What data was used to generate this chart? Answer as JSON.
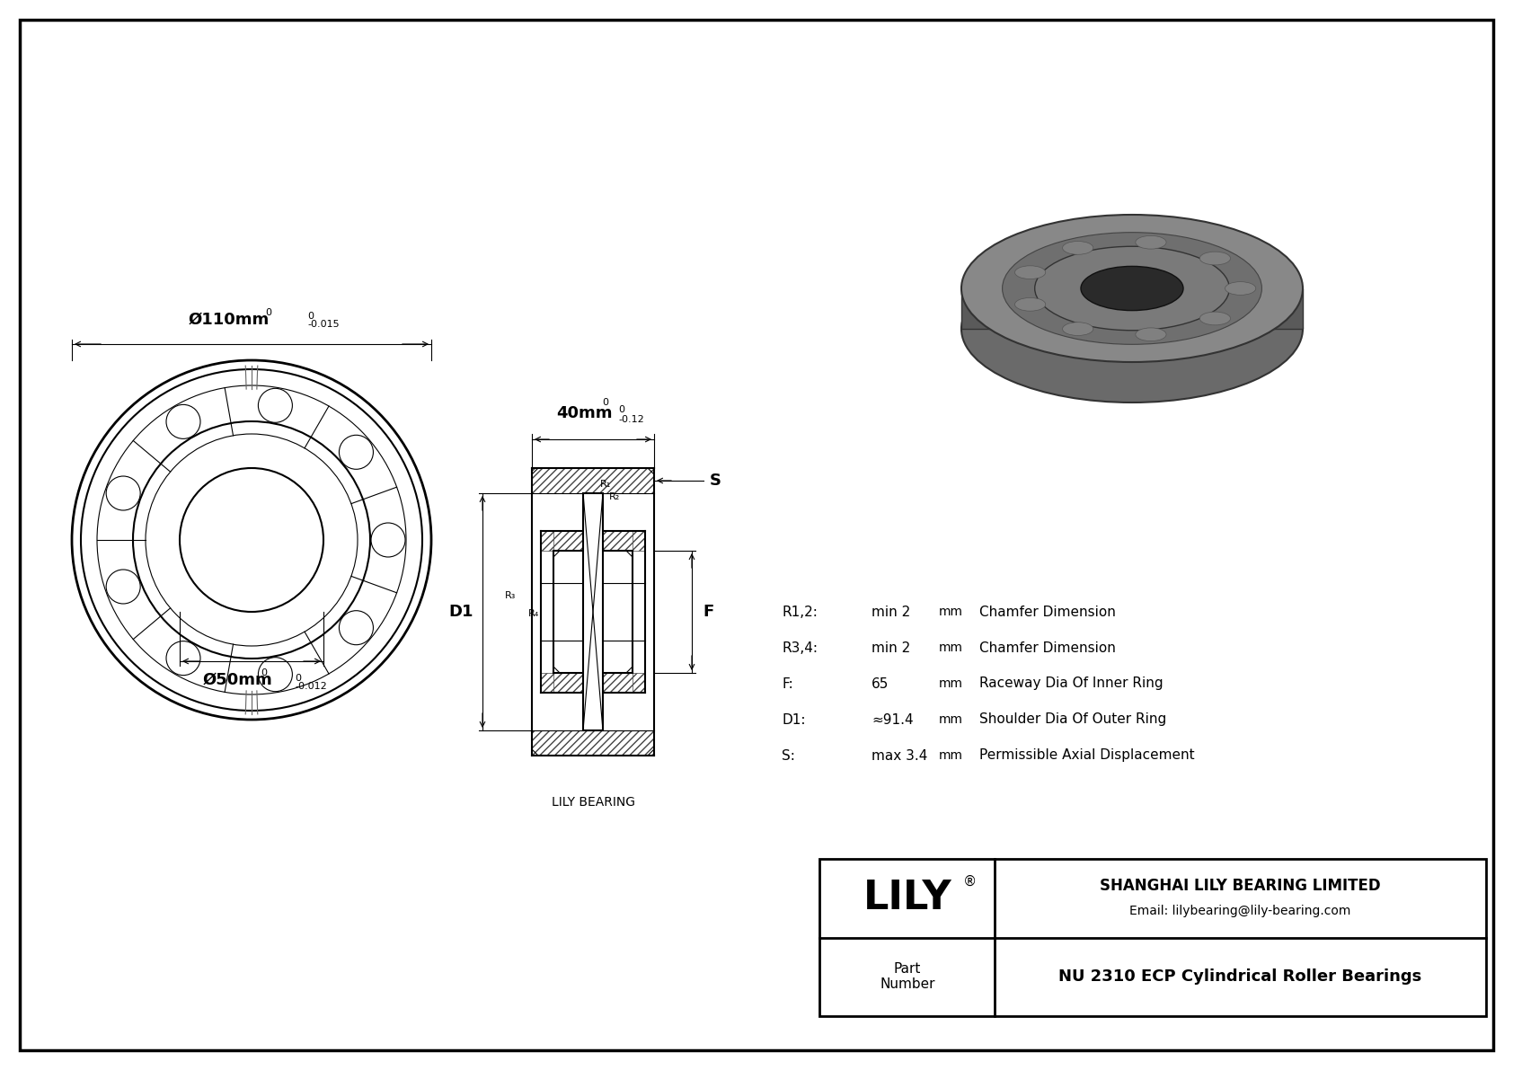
{
  "bg_color": "#ffffff",
  "line_color": "#000000",
  "outer_dim_label": "Ø110mm",
  "outer_dim_tol_upper": "0",
  "outer_dim_tol_lower": "-0.015",
  "inner_dim_label": "Ø50mm",
  "inner_dim_tol_upper": "0",
  "inner_dim_tol_lower": "-0.012",
  "width_label": "40mm",
  "width_tol_upper": "0",
  "width_tol_lower": "-0.12",
  "specs": [
    {
      "param": "R1,2:",
      "value": "min 2",
      "unit": "mm",
      "desc": "Chamfer Dimension"
    },
    {
      "param": "R3,4:",
      "value": "min 2",
      "unit": "mm",
      "desc": "Chamfer Dimension"
    },
    {
      "param": "F:",
      "value": "65",
      "unit": "mm",
      "desc": "Raceway Dia Of Inner Ring"
    },
    {
      "param": "D1:",
      "value": "≈91.4",
      "unit": "mm",
      "desc": "Shoulder Dia Of Outer Ring"
    },
    {
      "param": "S:",
      "value": "max 3.4",
      "unit": "mm",
      "desc": "Permissible Axial Displacement"
    }
  ],
  "company": "SHANGHAI LILY BEARING LIMITED",
  "email": "Email: lilybearing@lily-bearing.com",
  "part_label": "Part\nNumber",
  "part_number": "NU 2310 ECP Cylindrical Roller Bearings",
  "lily_label": "LILY",
  "credit": "LILY BEARING"
}
